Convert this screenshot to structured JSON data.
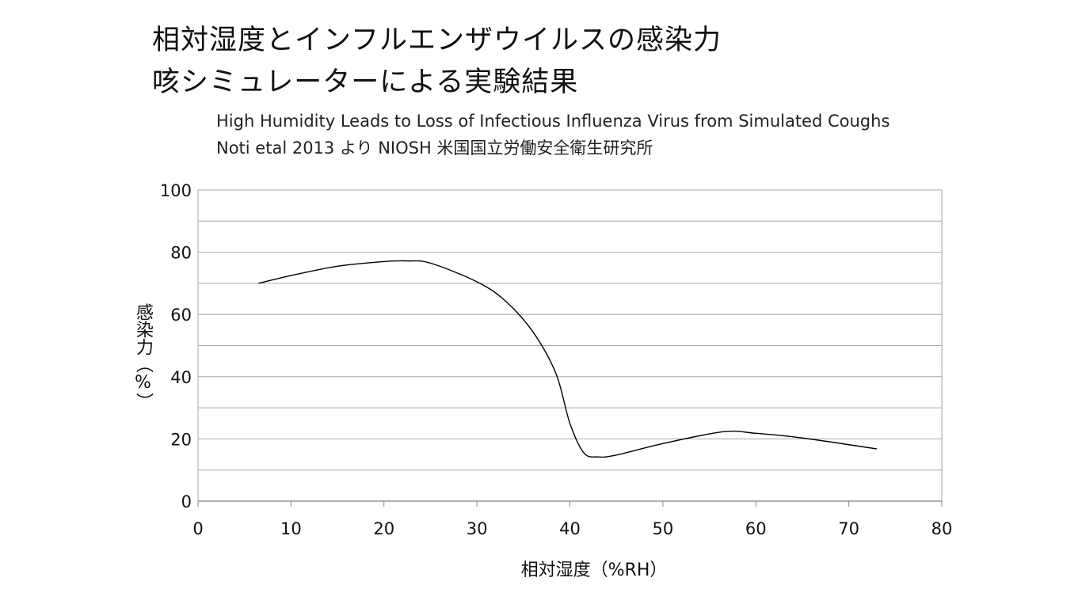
{
  "header": {
    "title_line1": "相対湿度とインフルエンザウイルスの感染力",
    "title_line2": "咳シミュレーターによる実験結果",
    "subtitle_line1": "High Humidity Leads to Loss of Infectious Influenza Virus from Simulated Coughs",
    "subtitle_line2": "Noti etal 2013 より NIOSH 米国国立労働安全衛生研究所"
  },
  "chart_data": {
    "type": "line",
    "title": "相対湿度とインフルエンザウイルスの感染力 咳シミュレーターによる実験結果",
    "xlabel": "相対湿度（%RH）",
    "ylabel": "感染力（%）",
    "xlim": [
      0,
      80
    ],
    "ylim": [
      0,
      100
    ],
    "xticks": [
      0,
      10,
      20,
      30,
      40,
      50,
      60,
      70,
      80
    ],
    "yticks": [
      0,
      20,
      40,
      60,
      80,
      100
    ],
    "ytick_labels": [
      "0",
      "20",
      "40",
      "60",
      "80",
      "100"
    ],
    "xtick_labels": [
      "0",
      "10",
      "20",
      "30",
      "40",
      "50",
      "60",
      "70",
      "80"
    ],
    "gridlines_y": [
      10,
      20,
      30,
      40,
      50,
      60,
      70,
      80,
      90,
      100
    ],
    "grid": true,
    "series": [
      {
        "name": "感染力",
        "x": [
          6.5,
          10,
          15,
          20,
          22.5,
          25,
          30,
          33,
          36,
          38.5,
          40,
          41.5,
          43,
          45,
          50,
          56.5,
          60,
          65,
          73
        ],
        "y": [
          70,
          72.5,
          75.5,
          77,
          77.2,
          76.5,
          70.5,
          64.5,
          54.5,
          41,
          25,
          15.5,
          14.2,
          14.8,
          18.5,
          22.3,
          21.8,
          20.3,
          16.8
        ]
      }
    ],
    "line_color": "#000000"
  }
}
